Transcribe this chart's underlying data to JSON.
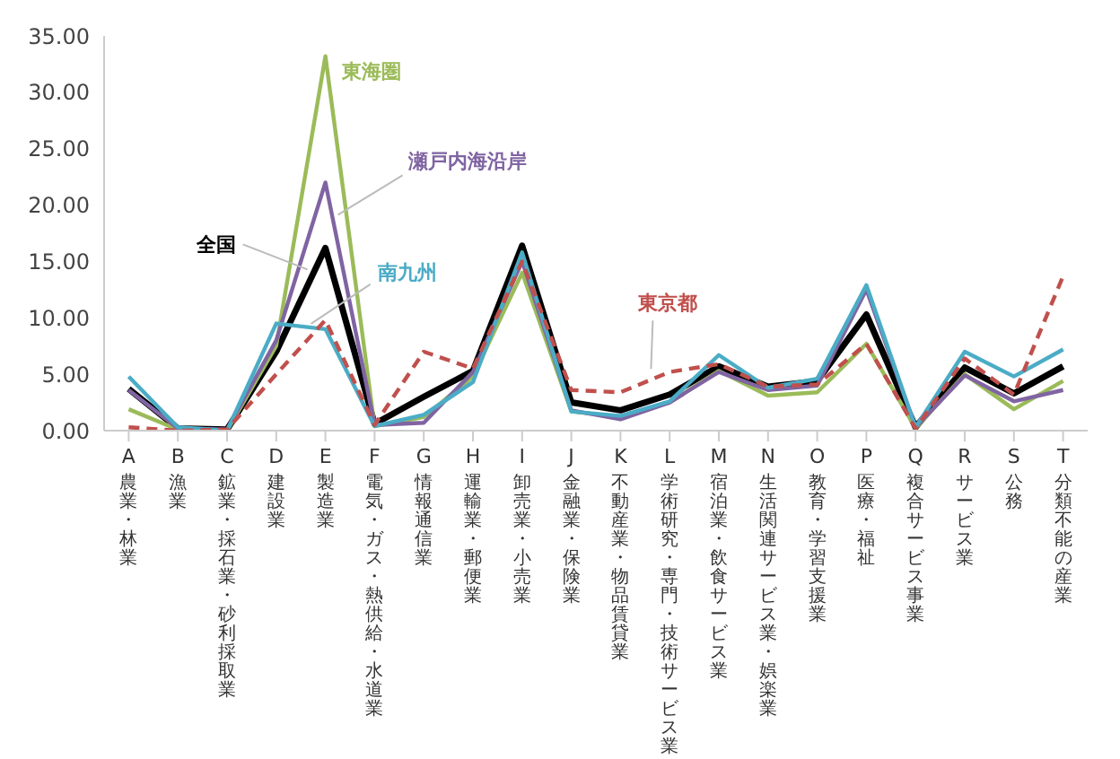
{
  "chart_data": {
    "type": "line",
    "categories": [
      "A 農業・林業",
      "B 漁業",
      "C 鉱業・採石業・砂利採取業",
      "D 建設業",
      "E 製造業",
      "F 電気・ガス・熱供給・水道業",
      "G 情報通信業",
      "H 運輸業・郵便業",
      "I 卸売業・小売業",
      "J 金融業・保険業",
      "K 不動産業・物品賃貸業",
      "L 学術研究・専門・技術サービス業",
      "M 宿泊業・飲食サービス業",
      "N 生活関連サービス業・娯楽業",
      "O 教育・学習支援業",
      "P 医療・福祉",
      "Q 複合サービス事業",
      "R サービス業",
      "S 公務",
      "T 分類不能の産業"
    ],
    "series": [
      {
        "name": "全国",
        "color": "#000000",
        "values": [
          3.7,
          0.2,
          0.1,
          7.0,
          16.2,
          0.6,
          3.0,
          5.3,
          16.4,
          2.5,
          1.8,
          3.2,
          5.7,
          3.9,
          4.4,
          10.3,
          0.3,
          5.6,
          3.3,
          5.7
        ]
      },
      {
        "name": "東海圏",
        "color": "#9bbb59",
        "values": [
          1.9,
          0.1,
          0.0,
          7.5,
          33.2,
          0.4,
          1.2,
          4.8,
          14.0,
          1.7,
          1.2,
          2.5,
          5.3,
          3.1,
          3.4,
          7.7,
          0.2,
          5.0,
          1.9,
          4.4
        ]
      },
      {
        "name": "瀬戸内海沿岸",
        "color": "#8064a2",
        "values": [
          3.6,
          0.2,
          0.1,
          8.0,
          22.0,
          0.5,
          0.7,
          5.2,
          15.0,
          1.8,
          1.0,
          2.5,
          5.2,
          3.6,
          4.0,
          12.5,
          0.3,
          4.9,
          2.6,
          3.6
        ]
      },
      {
        "name": "南九州",
        "color": "#4bacc6",
        "values": [
          4.8,
          0.3,
          0.0,
          9.5,
          9.0,
          0.4,
          1.4,
          4.3,
          15.8,
          1.7,
          1.3,
          2.6,
          6.7,
          3.8,
          4.6,
          12.9,
          0.3,
          7.0,
          4.8,
          7.2
        ]
      },
      {
        "name": "東京都",
        "color": "#c0504d",
        "line_style": "dashed",
        "values": [
          0.3,
          0.0,
          0.1,
          5.0,
          9.8,
          0.5,
          7.0,
          5.5,
          15.0,
          3.6,
          3.4,
          5.2,
          5.9,
          3.9,
          4.1,
          7.7,
          0.2,
          6.4,
          3.2,
          13.7
        ]
      }
    ],
    "ylim": [
      0,
      35
    ],
    "yticks": [
      {
        "value": 0,
        "label": "0.00"
      },
      {
        "value": 5,
        "label": "5.00"
      },
      {
        "value": 10,
        "label": "10.00"
      },
      {
        "value": 15,
        "label": "15.00"
      },
      {
        "value": 20,
        "label": "20.00"
      },
      {
        "value": 25,
        "label": "25.00"
      },
      {
        "value": 30,
        "label": "30.00"
      },
      {
        "value": 35,
        "label": "35.00"
      }
    ],
    "marker": "none",
    "legend": false,
    "grid": false
  }
}
